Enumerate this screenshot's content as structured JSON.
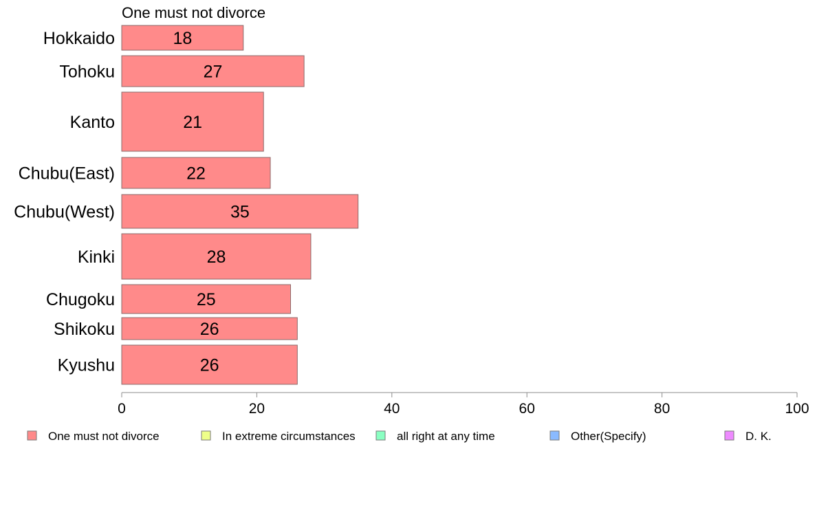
{
  "chart_data": {
    "type": "bar",
    "orientation": "horizontal",
    "title": "One must not divorce",
    "categories": [
      "Hokkaido",
      "Tohoku",
      "Kanto",
      "Chubu(East)",
      "Chubu(West)",
      "Kinki",
      "Chugoku",
      "Shikoku",
      "Kyushu"
    ],
    "series": [
      {
        "name": "One must not divorce",
        "color": "#ff8a8a",
        "values": [
          18,
          27,
          21,
          22,
          35,
          28,
          25,
          26,
          26
        ],
        "labels": [
          "18",
          "27",
          "21",
          "22",
          "35",
          "28",
          "25",
          "26",
          "26"
        ]
      }
    ],
    "xlim": [
      0,
      100
    ],
    "x_ticks": [
      "0",
      "20",
      "40",
      "60",
      "80",
      "100"
    ],
    "grid": false,
    "legend_position": "bottom",
    "legend": [
      {
        "label": "One must not divorce",
        "color": "#ff8a8a"
      },
      {
        "label": "In extreme circumstances",
        "color": "#eeff8a"
      },
      {
        "label": "all right at any time",
        "color": "#8affc2"
      },
      {
        "label": "Other(Specify)",
        "color": "#8abaff"
      },
      {
        "label": "D. K.",
        "color": "#ee8aff"
      }
    ],
    "bar_edge_color": "#8a6a6a",
    "axis_color": "#8c8c8c"
  }
}
